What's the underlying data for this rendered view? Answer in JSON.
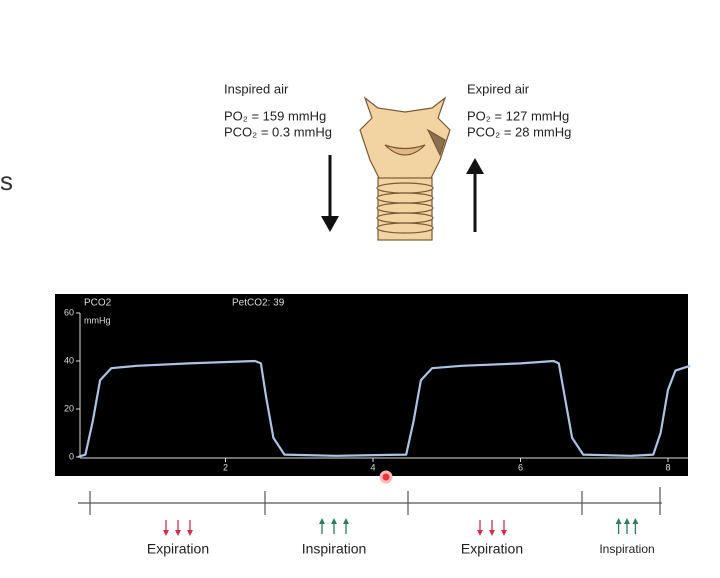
{
  "slide": {
    "fragment": "s",
    "inspired": {
      "title": "Inspired air",
      "po2": "PO₂ = 159 mmHg",
      "pco2": "PCO₂ = 0.3 mmHg"
    },
    "expired": {
      "title": "Expired air",
      "po2": "PO₂ = 127 mmHg",
      "pco2": "PCO₂ = 28 mmHg"
    },
    "phases": [
      "Expiration",
      "Inspiration",
      "Expiration",
      "Inspiration"
    ]
  },
  "chart_data": {
    "type": "line",
    "y_label": "PCO2",
    "y_unit": "mmHg",
    "annotation": "PetCO2: 39",
    "color": "#a9c4e4",
    "x": [
      0,
      0.1,
      0.2,
      0.3,
      0.45,
      0.8,
      1.5,
      2.4,
      2.48,
      2.55,
      2.65,
      2.8,
      3.5,
      4.45,
      4.55,
      4.65,
      4.8,
      5.2,
      6.0,
      6.45,
      6.52,
      6.6,
      6.7,
      6.85,
      7.5,
      7.8,
      7.9,
      8.0,
      8.1,
      8.3
    ],
    "values": [
      0,
      1,
      15,
      32,
      37,
      38,
      39,
      40,
      39,
      25,
      8,
      1,
      0.5,
      1,
      15,
      32,
      37,
      38,
      39,
      40,
      39,
      25,
      8,
      1,
      0.5,
      1,
      10,
      28,
      36,
      38
    ],
    "xlim": [
      0,
      8.3
    ],
    "ylim": [
      0,
      60
    ],
    "xticks": [
      2,
      4,
      6,
      8
    ],
    "yticks": [
      0,
      20,
      40,
      60
    ]
  }
}
